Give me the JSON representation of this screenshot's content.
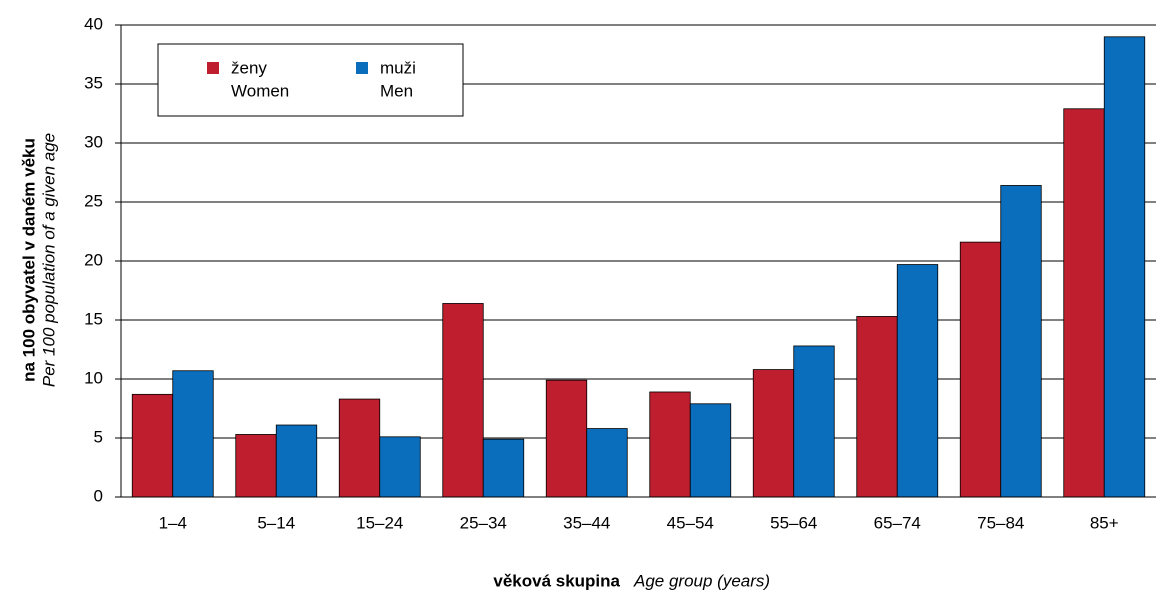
{
  "chart_data": {
    "type": "bar",
    "ylabel": "na 100 obyvatel v daném věku",
    "ylabel_en": "Per 100 population of a given age",
    "xlabel": "věková skupina",
    "xlabel_en": "Age group (years)",
    "categories": [
      "1–4",
      "5–14",
      "15–24",
      "25–34",
      "35–44",
      "45–54",
      "55–64",
      "65–74",
      "75–84",
      "85+"
    ],
    "series": [
      {
        "name": "ženy",
        "name_en": "Women",
        "color": "#be1e2d",
        "values": [
          8.7,
          5.3,
          8.3,
          16.4,
          9.9,
          8.9,
          10.8,
          15.3,
          21.6,
          32.9
        ]
      },
      {
        "name": "muži",
        "name_en": "Men",
        "color": "#0a6ebd",
        "values": [
          10.7,
          6.1,
          5.1,
          4.9,
          5.8,
          7.9,
          12.8,
          19.7,
          26.4,
          39.0
        ]
      }
    ],
    "ylim": [
      0,
      40
    ],
    "yticks": [
      0,
      5,
      10,
      15,
      20,
      25,
      30,
      35,
      40
    ],
    "grid": true,
    "legend": "upper left"
  }
}
